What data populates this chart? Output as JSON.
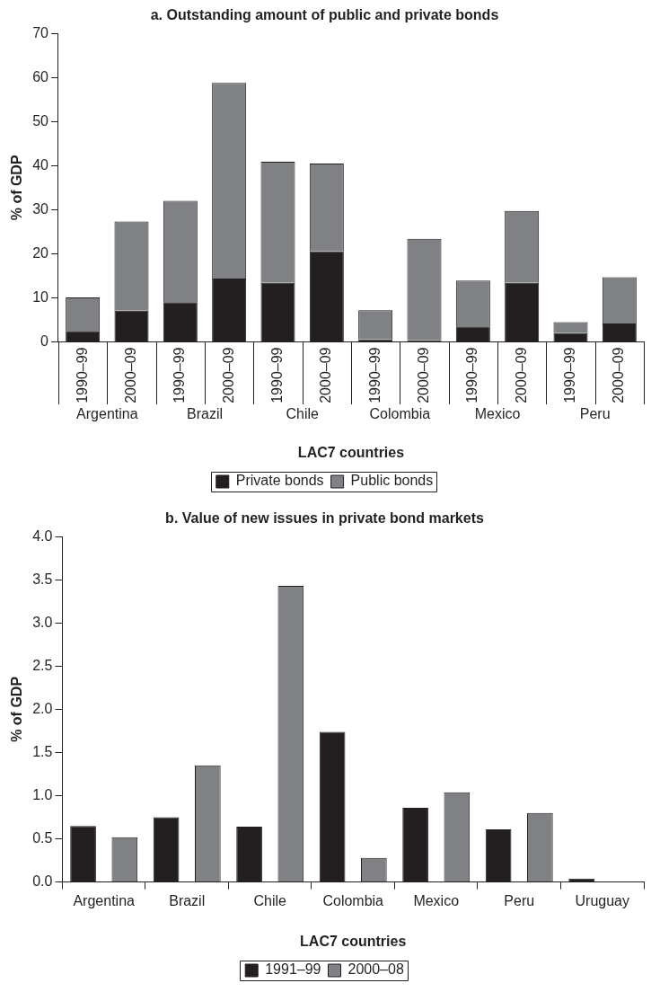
{
  "chart_data": [
    {
      "type": "bar",
      "title": "a. Outstanding amount of public and private bonds",
      "xlabel": "LAC7 countries",
      "ylabel": "% of GDP",
      "stacked": true,
      "categories": [
        "1990–99",
        "2000–09",
        "1990–99",
        "2000–09",
        "1990–99",
        "2000–09",
        "1990–99",
        "2000–09",
        "1990–99",
        "2000–09",
        "1990–99",
        "2000–09"
      ],
      "series": [
        {
          "name": "Private bonds",
          "color": "#231f20",
          "values": [
            2.5,
            7.1,
            9.0,
            14.4,
            13.4,
            20.6,
            0.6,
            0.4,
            3.5,
            13.4,
            2.0,
            4.2
          ]
        },
        {
          "name": "Public bonds",
          "color": "#808184",
          "values": [
            7.6,
            20.2,
            23.0,
            44.4,
            27.5,
            19.9,
            6.6,
            23.0,
            10.4,
            16.3,
            2.5,
            10.5
          ]
        }
      ],
      "ylim": [
        0,
        70
      ],
      "yticks": [
        0,
        10,
        20,
        30,
        40,
        50,
        60,
        70
      ],
      "grid": false,
      "legend": "bottom",
      "annotations": [
        "Argentina",
        "Brazil",
        "Chile",
        "Colombia",
        "Mexico",
        "Peru"
      ]
    },
    {
      "type": "bar",
      "title": "b. Value of new issues in private bond markets",
      "xlabel": "LAC7 countries",
      "ylabel": "% of GDP",
      "categories": [
        "Argentina",
        "Brazil",
        "Chile",
        "Colombia",
        "Mexico",
        "Peru",
        "Uruguay"
      ],
      "series": [
        {
          "name": "1991–99",
          "color": "#231f20",
          "values": [
            0.65,
            0.75,
            0.64,
            1.74,
            0.86,
            0.61,
            0.04
          ]
        },
        {
          "name": "2000–08",
          "color": "#808184",
          "values": [
            0.52,
            1.35,
            3.43,
            0.28,
            1.04,
            0.8,
            null
          ]
        }
      ],
      "ylim": [
        0,
        4.0
      ],
      "yticks": [
        {
          "value": 0,
          "label": "0.0"
        },
        {
          "value": 0.5,
          "label": "0.5"
        },
        {
          "value": 1,
          "label": "1.0"
        },
        {
          "value": 1.5,
          "label": "1.5"
        },
        {
          "value": 2,
          "label": "2.0"
        },
        {
          "value": 2.5,
          "label": "2.5"
        },
        {
          "value": 3,
          "label": "3.0"
        },
        {
          "value": 3.5,
          "label": "3.5"
        },
        {
          "value": 4,
          "label": "4.0"
        }
      ],
      "grid": false,
      "legend": "bottom"
    }
  ]
}
